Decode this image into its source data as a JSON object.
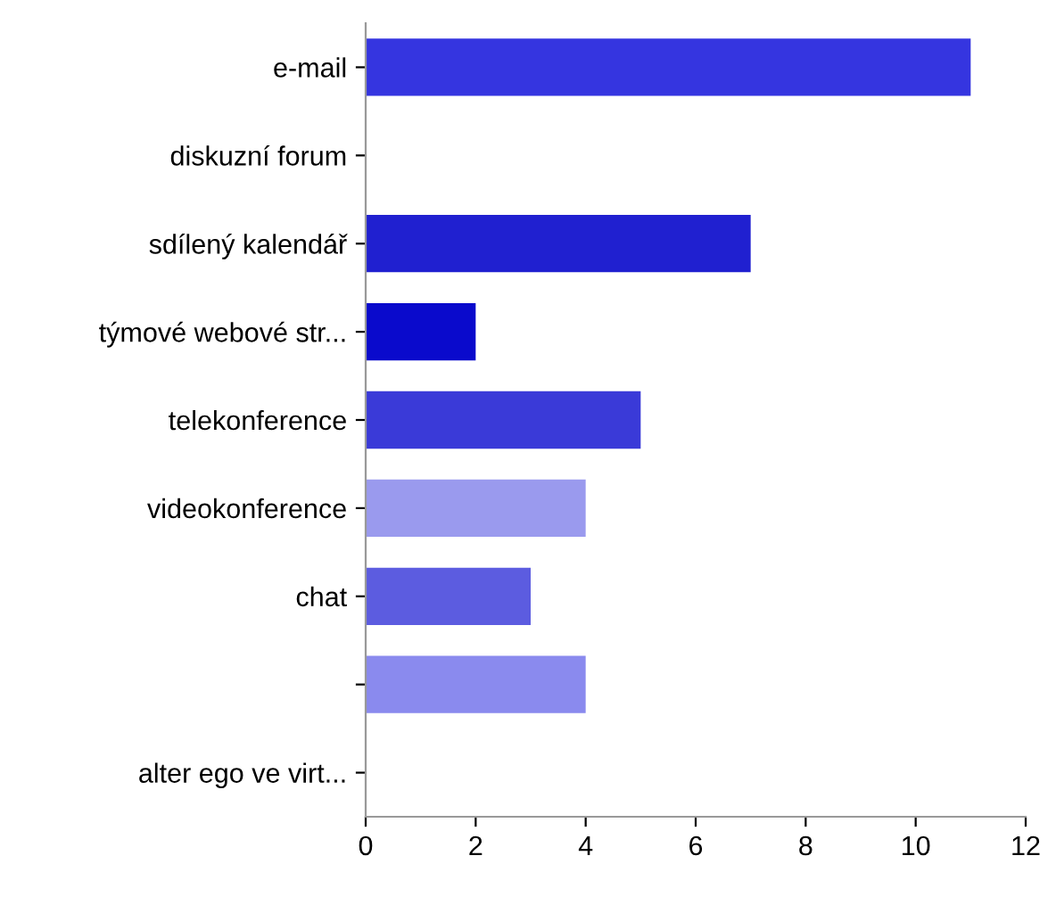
{
  "chart_data": {
    "type": "bar",
    "orientation": "horizontal",
    "categories": [
      "e-mail",
      "diskuzní forum",
      "sdílený kalendář",
      "týmové webové str...",
      "telekonference",
      "videokonference",
      "chat",
      null,
      "alter ego ve virt..."
    ],
    "values": [
      11,
      0,
      7,
      2,
      5,
      4,
      3,
      4,
      0
    ],
    "colors": [
      "#3535e0",
      "#3535e0",
      "#2020d0",
      "#0a0acc",
      "#3a3ad8",
      "#9a9aee",
      "#5c5ce0",
      "#8a8aee",
      "#3535e0"
    ],
    "xlim": [
      0,
      12
    ],
    "xticks": [
      0,
      2,
      4,
      6,
      8,
      10,
      12
    ],
    "grid": false,
    "legend": false
  }
}
